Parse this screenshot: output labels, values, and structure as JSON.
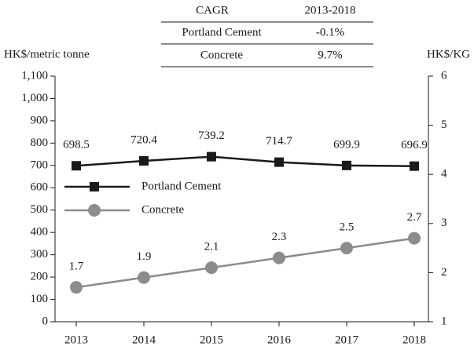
{
  "table": {
    "header": [
      "CAGR",
      "2013-2018"
    ],
    "rows": [
      [
        "Portland Cement",
        "-0.1%"
      ],
      [
        "Concrete",
        "9.7%"
      ]
    ]
  },
  "chart_data": {
    "type": "line",
    "ylabel": "HK$/metric tonne",
    "y2label": "HK$/KG",
    "categories": [
      "2013",
      "2014",
      "2015",
      "2016",
      "2017",
      "2018"
    ],
    "series": [
      {
        "name": "Portland Cement",
        "color": "#1a1a1a",
        "marker": "square",
        "values": [
          698.5,
          720.4,
          739.2,
          714.7,
          699.9,
          696.9
        ]
      },
      {
        "name": "Concrete",
        "color": "#8c8c8c",
        "marker": "circle",
        "axis": "y2",
        "values": [
          1.7,
          1.9,
          2.1,
          2.3,
          2.5,
          2.7
        ]
      }
    ],
    "ylim": [
      0,
      1100
    ],
    "yticks": [
      0,
      100,
      200,
      300,
      400,
      500,
      600,
      700,
      800,
      900,
      {
        "value": 1000,
        "label": "1,000"
      },
      {
        "value": 1100,
        "label": "1,100"
      }
    ],
    "y2lim": [
      1,
      6
    ],
    "y2ticks": [
      1,
      2,
      3,
      4,
      5,
      6
    ],
    "legend": "center left",
    "grid": false
  }
}
